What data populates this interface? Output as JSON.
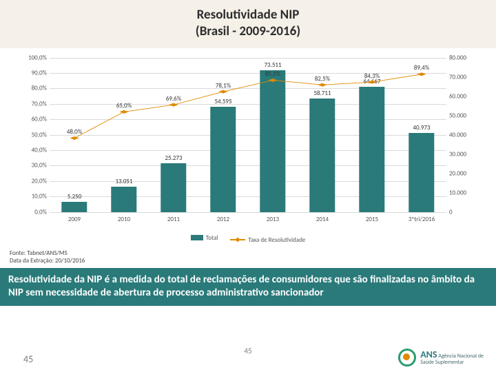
{
  "title_line1": "Resolutividade NIP",
  "title_line2": "(Brasil - 2009-2016)",
  "chart": {
    "type": "bar+line",
    "background_color": "#ffffff",
    "grid_color": "#d9d9d9",
    "axis_fontsize": 9,
    "label_fontsize": 9,
    "categories": [
      "2009",
      "2010",
      "2011",
      "2012",
      "2013",
      "2014",
      "2015",
      "3ºtri/2016"
    ],
    "bar_values": [
      5250,
      13051,
      25273,
      54595,
      73511,
      58711,
      64667,
      40973
    ],
    "bar_labels": [
      "5.250",
      "13.051",
      "25.273",
      "54.595",
      "73.511",
      "58.711",
      "64.667",
      "40.973"
    ],
    "bar_color": "#2a7a7a",
    "bar_width_pct": 6.5,
    "line_values": [
      48.0,
      65.0,
      69.6,
      78.1,
      85.5,
      82.5,
      84.3,
      89.4
    ],
    "line_labels": [
      "48,0%",
      "65,0%",
      "69,6%",
      "78,1%",
      "85,5%",
      "82,5%",
      "84,3%",
      "89,4%"
    ],
    "line_color": "#e08a00",
    "marker_shape": "diamond",
    "marker_size": 6,
    "line_width": 2,
    "y_left": {
      "min": 0,
      "max": 100,
      "step": 10,
      "fmt_suffix": ",0%"
    },
    "y_right": {
      "min": 0,
      "max": 80000,
      "step": 10000
    },
    "legend": {
      "bar_label": "Total",
      "line_label": "Taxa de Resolutividade"
    }
  },
  "source_line1": "Fonte: Tabnet/ANS/MS",
  "source_line2": "Data da Extração: 20/10/2016",
  "description": "Resolutividade da NIP é a medida do total de reclamações de consumidores que são finalizadas no âmbito da NIP sem necessidade de abertura de processo administrativo sancionador",
  "page_number": "45",
  "logo": {
    "brand": "ANS",
    "sub": "Agência Nacional de\nSaúde Suplementar"
  },
  "colors": {
    "title_bg": "#f5f0e8",
    "desc_bg": "#2a7a7a",
    "desc_fg": "#ffffff",
    "accent": "#e08a00",
    "teal": "#2a7a7a"
  }
}
